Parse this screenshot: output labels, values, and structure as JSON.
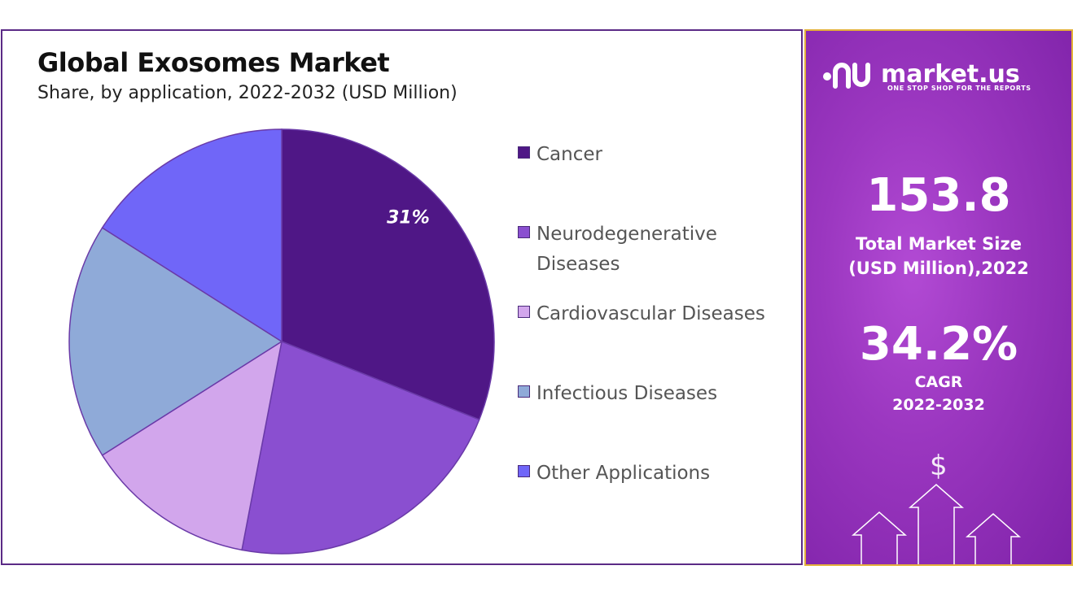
{
  "chart_data": {
    "type": "pie",
    "title": "Global Exosomes Market",
    "subtitle": "Share, by application, 2022-2032 (USD Million)",
    "series": [
      {
        "name": "Cancer",
        "value": 31,
        "color": "#4f1786"
      },
      {
        "name": "Neurodegenerative Diseases",
        "value": 22,
        "color": "#8a4fd0"
      },
      {
        "name": "Cardiovascular Diseases",
        "value": 13,
        "color": "#d2a6ec"
      },
      {
        "name": "Infectious Diseases",
        "value": 18,
        "color": "#8faad8"
      },
      {
        "name": "Other Applications",
        "value": 16,
        "color": "#7066f8"
      }
    ],
    "data_labels": [
      {
        "series": "Cancer",
        "text": "31%"
      }
    ],
    "legend_position": "right"
  },
  "legend": {
    "items": [
      {
        "label_lines": [
          "Cancer"
        ]
      },
      {
        "label_lines": [
          "Neurodegenerative",
          "Diseases"
        ]
      },
      {
        "label_lines": [
          "Cardiovascular Diseases"
        ]
      },
      {
        "label_lines": [
          "Infectious Diseases"
        ]
      },
      {
        "label_lines": [
          "Other Applications"
        ]
      }
    ]
  },
  "sidebar": {
    "logo_text": "market.us",
    "logo_tagline": "ONE STOP SHOP FOR THE REPORTS",
    "market_size_value": "153.8",
    "market_size_label_line1": "Total Market Size",
    "market_size_label_line2": "(USD Million),2022",
    "cagr_value": "34.2%",
    "cagr_label_line1": "CAGR",
    "cagr_label_line2": "2022-2032",
    "dollar_symbol": "$"
  },
  "colors": {
    "panel_border": "#5b2a86",
    "sidebar_border": "#e3b13a",
    "sidebar_bg": "#9b37c0"
  }
}
